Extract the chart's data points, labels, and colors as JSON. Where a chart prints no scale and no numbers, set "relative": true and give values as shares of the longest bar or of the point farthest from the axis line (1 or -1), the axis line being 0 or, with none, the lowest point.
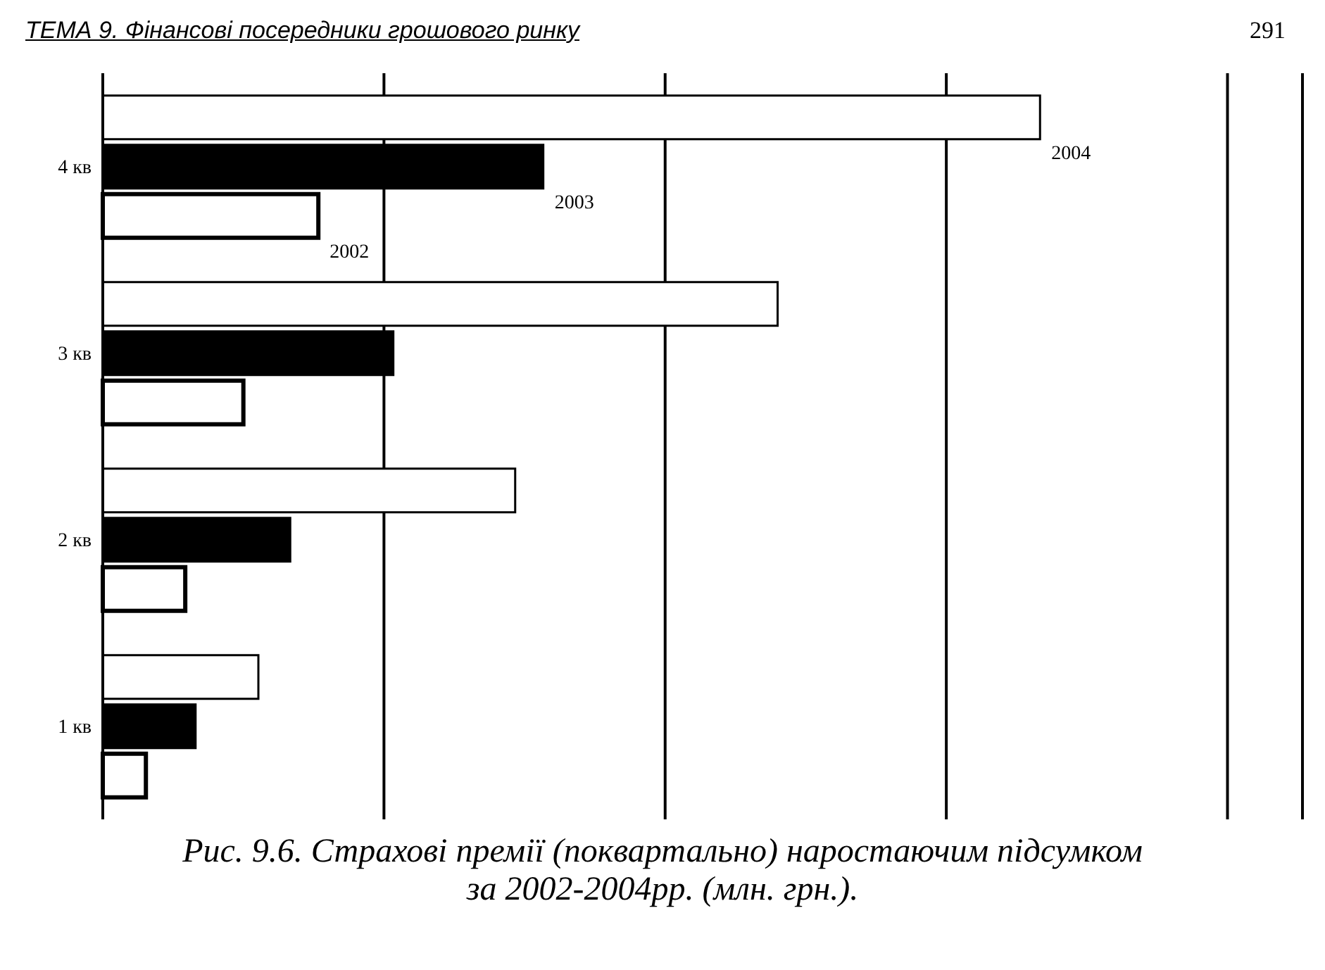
{
  "chart_data": {
    "type": "bar",
    "orientation": "horizontal",
    "relative": true,
    "title": "Рис. 9.6.   Страхові премії (поквартально) наростаючим підсумком за 2002-2004рр. (млн. грн.).",
    "annotations": [
      "ТЕМА 9. Фінансові посередники грошового ринку",
      "291"
    ],
    "categories": [
      "4 кв",
      "3 кв",
      "2 кв",
      "1 кв"
    ],
    "grid": "x",
    "legend": false,
    "series": [
      {
        "name": "2004",
        "color": "#ffffff",
        "values": [
          1,
          0.72,
          0.44,
          0.166
        ]
      },
      {
        "name": "2003",
        "color": "#000000",
        "values": [
          0.47,
          0.31,
          0.2,
          0.099
        ]
      },
      {
        "name": "2002",
        "color": "#ffffff",
        "values": [
          0.23,
          0.15,
          0.088,
          0.046
        ]
      }
    ]
  }
}
